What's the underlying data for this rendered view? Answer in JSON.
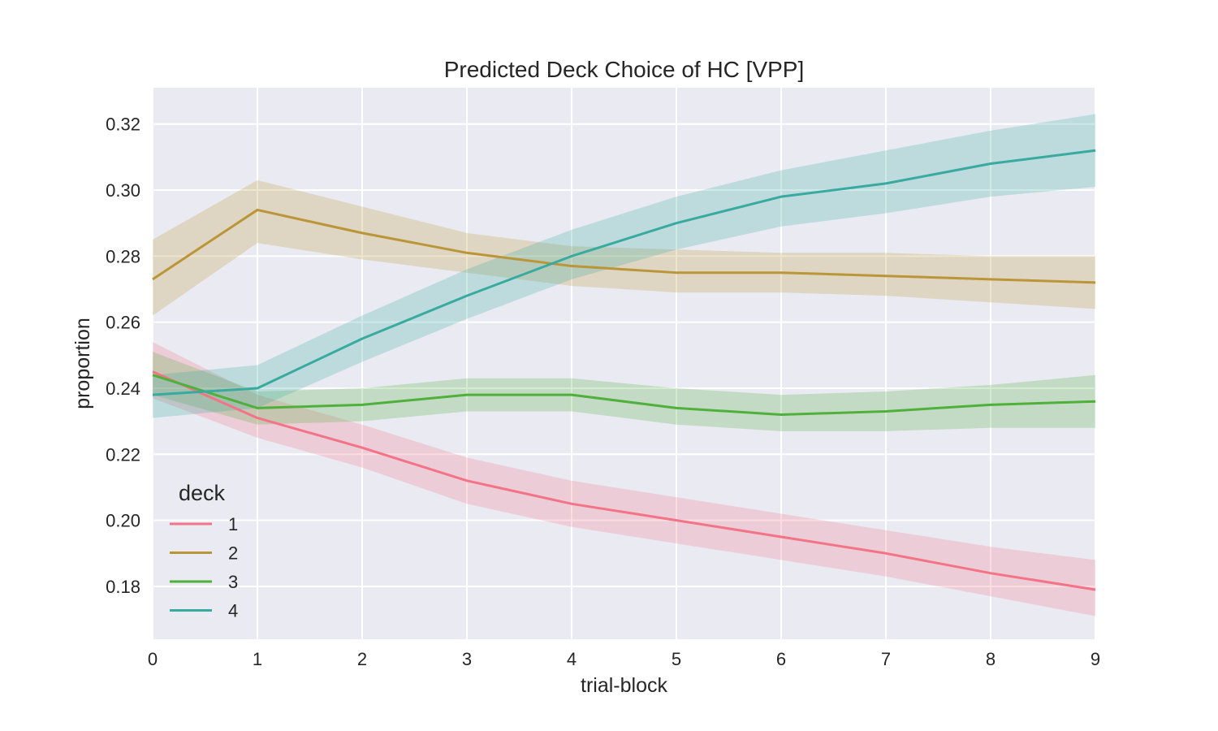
{
  "chart_data": {
    "type": "line",
    "title": "Predicted Deck Choice of HC [VPP]",
    "xlabel": "trial-block",
    "ylabel": "proportion",
    "x": [
      0,
      1,
      2,
      3,
      4,
      5,
      6,
      7,
      8,
      9
    ],
    "xlim": [
      0,
      9
    ],
    "ylim": [
      0.164,
      0.331
    ],
    "xticks": [
      "0",
      "1",
      "2",
      "3",
      "4",
      "5",
      "6",
      "7",
      "8",
      "9"
    ],
    "yticks": [
      "0.18",
      "0.20",
      "0.22",
      "0.24",
      "0.26",
      "0.28",
      "0.30",
      "0.32"
    ],
    "grid": true,
    "legend": {
      "title": "deck",
      "placement": "lower-left"
    },
    "series": [
      {
        "name": "1",
        "color": "#f37387",
        "values": [
          0.245,
          0.231,
          0.222,
          0.212,
          0.205,
          0.2,
          0.195,
          0.19,
          0.184,
          0.179
        ],
        "lower": [
          0.237,
          0.225,
          0.216,
          0.205,
          0.198,
          0.193,
          0.188,
          0.183,
          0.177,
          0.171
        ],
        "upper": [
          0.254,
          0.238,
          0.229,
          0.219,
          0.212,
          0.207,
          0.202,
          0.197,
          0.192,
          0.188
        ]
      },
      {
        "name": "2",
        "color": "#ba9638",
        "values": [
          0.273,
          0.294,
          0.287,
          0.281,
          0.277,
          0.275,
          0.275,
          0.274,
          0.273,
          0.272
        ],
        "lower": [
          0.262,
          0.284,
          0.279,
          0.275,
          0.271,
          0.269,
          0.269,
          0.268,
          0.266,
          0.264
        ],
        "upper": [
          0.285,
          0.303,
          0.295,
          0.287,
          0.283,
          0.282,
          0.281,
          0.281,
          0.28,
          0.28
        ]
      },
      {
        "name": "3",
        "color": "#4fb03b",
        "values": [
          0.244,
          0.234,
          0.235,
          0.238,
          0.238,
          0.234,
          0.232,
          0.233,
          0.235,
          0.236
        ],
        "lower": [
          0.238,
          0.229,
          0.23,
          0.233,
          0.233,
          0.229,
          0.227,
          0.227,
          0.228,
          0.228
        ],
        "upper": [
          0.251,
          0.239,
          0.24,
          0.243,
          0.243,
          0.24,
          0.238,
          0.239,
          0.241,
          0.244
        ]
      },
      {
        "name": "4",
        "color": "#38aaa0",
        "values": [
          0.238,
          0.24,
          0.255,
          0.268,
          0.28,
          0.29,
          0.298,
          0.302,
          0.308,
          0.312
        ],
        "lower": [
          0.231,
          0.234,
          0.248,
          0.261,
          0.273,
          0.282,
          0.289,
          0.293,
          0.298,
          0.301
        ],
        "upper": [
          0.244,
          0.247,
          0.262,
          0.276,
          0.288,
          0.298,
          0.306,
          0.312,
          0.318,
          0.323
        ]
      }
    ]
  }
}
